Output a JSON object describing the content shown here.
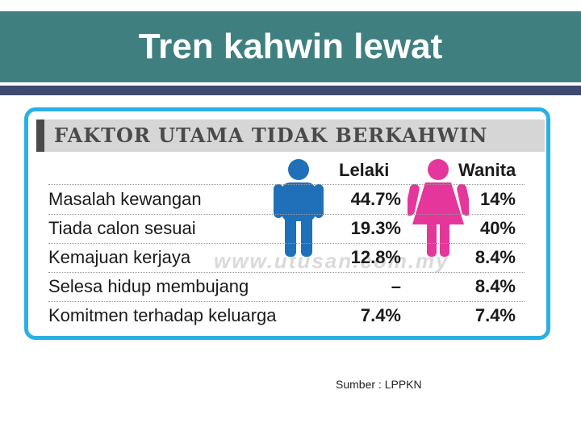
{
  "header": {
    "title": "Tren kahwin lewat"
  },
  "card": {
    "heading": "FAKTOR UTAMA TIDAK BERKAHWIN",
    "watermark": "www.utusan.com.my"
  },
  "source": "Sumber : LPPKN",
  "icons": {
    "male": "male-person-icon",
    "female": "female-person-icon"
  },
  "colors": {
    "title_bg": "#3f7f7f",
    "stripe": "#3f4a72",
    "border": "#29b1e4",
    "male": "#1f70b8",
    "female": "#e5369b"
  },
  "chart_data": {
    "type": "table",
    "title": "FAKTOR UTAMA TIDAK BERKAHWIN",
    "columns": [
      "Lelaki",
      "Wanita"
    ],
    "rows": [
      {
        "label": "Masalah kewangan",
        "lelaki": "44.7%",
        "wanita": "14%"
      },
      {
        "label": "Tiada calon sesuai",
        "lelaki": "19.3%",
        "wanita": "40%"
      },
      {
        "label": "Kemajuan kerjaya",
        "lelaki": "12.8%",
        "wanita": "8.4%"
      },
      {
        "label": "Selesa hidup membujang",
        "lelaki": "–",
        "wanita": "8.4%"
      },
      {
        "label": "Komitmen terhadap keluarga",
        "lelaki": "7.4%",
        "wanita": "7.4%"
      }
    ]
  }
}
